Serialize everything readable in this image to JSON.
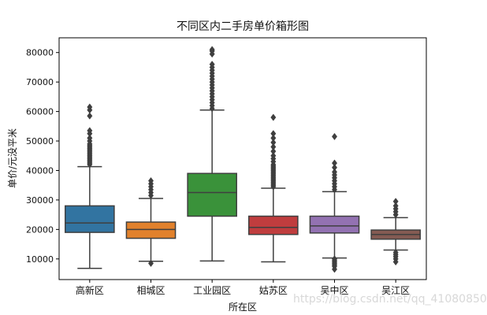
{
  "chart_data": {
    "type": "box",
    "title": "不同区内二手房单价箱形图",
    "xlabel": "所在区",
    "ylabel": "单价/元没平米",
    "ylim": [
      3000,
      85000
    ],
    "yticks": [
      10000,
      20000,
      30000,
      40000,
      50000,
      60000,
      70000,
      80000
    ],
    "categories": [
      "高新区",
      "相城区",
      "工业园区",
      "姑苏区",
      "吴中区",
      "吴江区"
    ],
    "colors": [
      "#3274a1",
      "#e1812c",
      "#3a923a",
      "#c03d3e",
      "#9372b2",
      "#845b53"
    ],
    "series": [
      {
        "whislo": 6800,
        "q1": 19000,
        "med": 22200,
        "q3": 28000,
        "whishi": 41300,
        "fliers": [
          42000,
          42500,
          43000,
          43500,
          44000,
          44500,
          45000,
          45500,
          46000,
          46500,
          47000,
          47500,
          48000,
          48500,
          49000,
          50000,
          51000,
          52500,
          53500,
          58500,
          60500,
          61500
        ]
      },
      {
        "whislo": 9200,
        "q1": 17000,
        "med": 20000,
        "q3": 22500,
        "whishi": 30500,
        "fliers": [
          8500,
          31500,
          32500,
          33500,
          34500,
          35500,
          36500
        ]
      },
      {
        "whislo": 9300,
        "q1": 24500,
        "med": 32500,
        "q3": 39000,
        "whishi": 60500,
        "fliers": [
          61000,
          62000,
          63000,
          64000,
          65000,
          66000,
          67000,
          68000,
          69000,
          70000,
          71000,
          72000,
          73000,
          74000,
          75000,
          76000,
          79500,
          80500,
          81000
        ]
      },
      {
        "whislo": 9000,
        "q1": 18300,
        "med": 20700,
        "q3": 24500,
        "whishi": 34000,
        "fliers": [
          34500,
          35000,
          35500,
          36000,
          36500,
          37000,
          37500,
          38000,
          38500,
          39000,
          39500,
          40000,
          40500,
          41000,
          41500,
          42000,
          43000,
          44000,
          45000,
          46500,
          48000,
          49500,
          51000,
          52500,
          58000
        ]
      },
      {
        "whislo": 10300,
        "q1": 18800,
        "med": 21200,
        "q3": 24500,
        "whishi": 32800,
        "fliers": [
          6500,
          7500,
          8000,
          8500,
          9000,
          9500,
          10000,
          33500,
          34500,
          35500,
          36500,
          37500,
          38500,
          39500,
          41000,
          42500,
          51500
        ]
      },
      {
        "whislo": 13000,
        "q1": 16700,
        "med": 18300,
        "q3": 19800,
        "whishi": 24000,
        "fliers": [
          9000,
          10000,
          10800,
          11500,
          12200,
          25000,
          26000,
          27000,
          28000,
          29500
        ]
      }
    ]
  },
  "watermark": "https://blog.csdn.net/qq_41080850"
}
